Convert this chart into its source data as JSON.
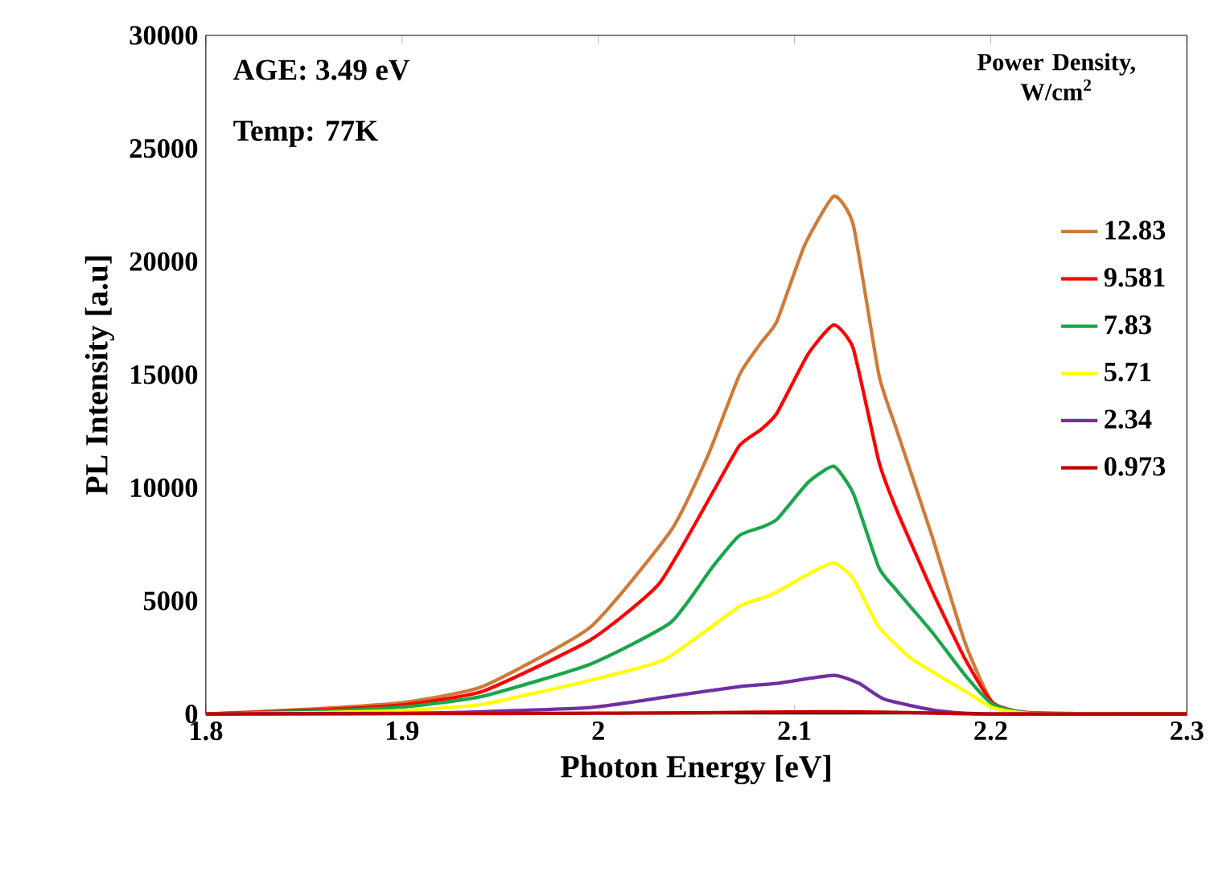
{
  "chart_data": {
    "type": "line",
    "xlabel": "Photon Energy [eV]",
    "ylabel": "PL Intensity [a.u]",
    "legend_title": "Power Density, W/cm$^{2}$",
    "annotations": [
      "AGE: 3.49 eV",
      "Temp: 77K"
    ],
    "xlim": [
      1.8,
      2.3
    ],
    "xticks": [
      1.8,
      1.9,
      2,
      2.1,
      2.2,
      2.3
    ],
    "ylim": [
      0,
      30000
    ],
    "yticks": [
      0,
      5000,
      10000,
      15000,
      20000,
      25000,
      30000
    ],
    "grid": false,
    "legend": "right",
    "marker": "none",
    "line_style": "solid",
    "series": [
      {
        "name": "12.83",
        "color": "#d07a38",
        "x": [
          1.8,
          1.85,
          1.9,
          1.941,
          1.996,
          2.037,
          2.056,
          2.072,
          2.083,
          2.091,
          2.105,
          2.12,
          2.13,
          2.143,
          2.152,
          2.17,
          2.187,
          2.201,
          2.22,
          2.3
        ],
        "values": [
          0,
          200,
          500,
          1210,
          3840,
          8100,
          11450,
          15000,
          16420,
          17350,
          20690,
          22890,
          21610,
          15000,
          12580,
          7890,
          3130,
          500,
          50,
          0
        ]
      },
      {
        "name": "9.581",
        "color": "#ff0000",
        "x": [
          1.8,
          1.85,
          1.9,
          1.941,
          1.996,
          2.031,
          2.058,
          2.072,
          2.083,
          2.091,
          2.107,
          2.12,
          2.13,
          2.143,
          2.152,
          2.17,
          2.187,
          2.201,
          2.22,
          2.3
        ],
        "values": [
          0,
          150,
          400,
          1000,
          3270,
          5760,
          9740,
          11870,
          12580,
          13290,
          15920,
          17200,
          16140,
          11160,
          9030,
          5470,
          2420,
          500,
          50,
          0
        ]
      },
      {
        "name": "7.83",
        "color": "#1aa64a",
        "x": [
          1.8,
          1.85,
          1.9,
          1.941,
          1.996,
          2.037,
          2.058,
          2.072,
          2.083,
          2.091,
          2.107,
          2.12,
          2.13,
          2.143,
          2.152,
          2.17,
          2.187,
          2.201,
          2.22,
          2.3
        ],
        "values": [
          0,
          100,
          300,
          780,
          2200,
          4050,
          6470,
          7890,
          8250,
          8600,
          10240,
          10950,
          9740,
          6470,
          5470,
          3630,
          1710,
          430,
          40,
          0
        ]
      },
      {
        "name": "5.71",
        "color": "#ffff00",
        "x": [
          1.8,
          1.85,
          1.9,
          1.941,
          1.996,
          2.034,
          2.072,
          2.088,
          2.107,
          2.12,
          2.13,
          2.143,
          2.16,
          2.187,
          2.201,
          2.22,
          2.3
        ],
        "values": [
          0,
          50,
          150,
          430,
          1490,
          2420,
          4760,
          5260,
          6180,
          6680,
          5970,
          3840,
          2420,
          1000,
          280,
          30,
          0
        ]
      },
      {
        "name": "2.34",
        "color": "#7030a0",
        "x": [
          1.8,
          1.9,
          1.941,
          1.996,
          2.037,
          2.072,
          2.091,
          2.12,
          2.133,
          2.146,
          2.173,
          2.2,
          2.3
        ],
        "values": [
          0,
          30,
          100,
          280,
          780,
          1210,
          1350,
          1710,
          1350,
          640,
          140,
          0,
          0
        ]
      },
      {
        "name": "0.973",
        "color": "#c00000",
        "x": [
          1.8,
          1.95,
          2.05,
          2.12,
          2.17,
          2.2,
          2.3
        ],
        "values": [
          0,
          20,
          50,
          100,
          40,
          0,
          0
        ]
      }
    ]
  }
}
